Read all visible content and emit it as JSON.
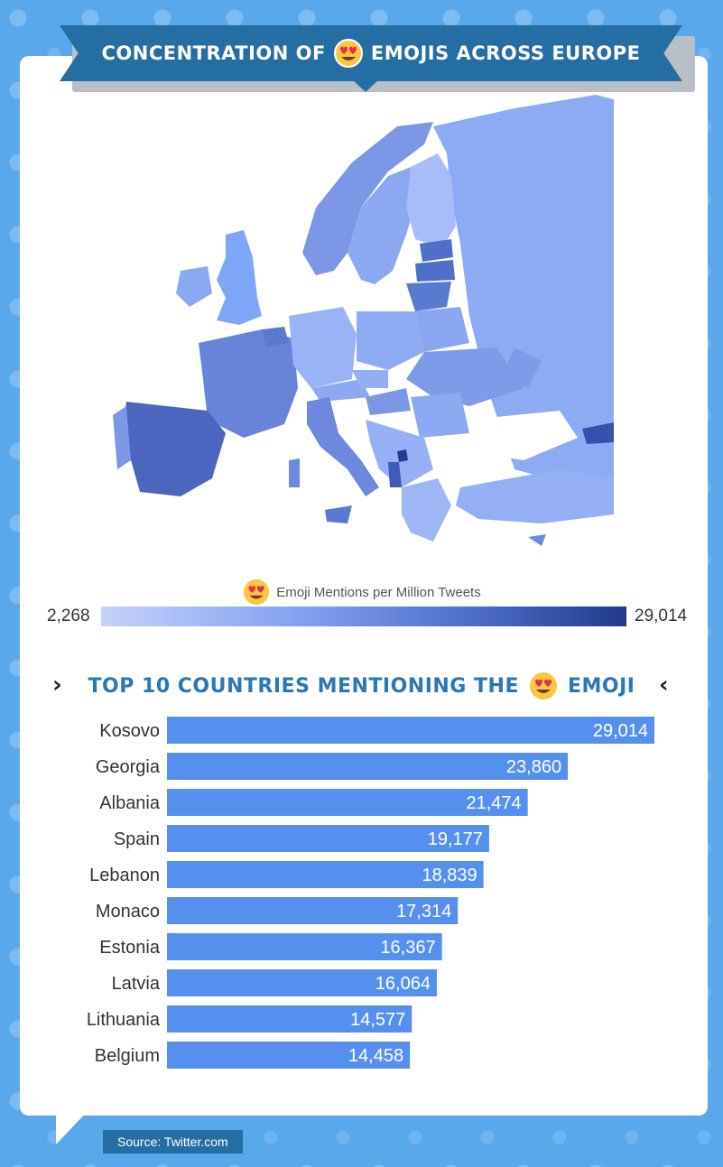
{
  "header": {
    "title_left": "CONCENTRATION OF",
    "title_right": "EMOJIS ACROSS EUROPE"
  },
  "emoji": {
    "icon": "heart-eyes-emoji-icon",
    "face_color": "#f9c740",
    "heart_color": "#e2304a"
  },
  "legend": {
    "label": "Emoji Mentions per Million Tweets",
    "min": "2,268",
    "max": "29,014",
    "color_low": "#c5d2fb",
    "color_high": "#213a8c"
  },
  "section": {
    "title_left": "TOP 10 COUNTRIES MENTIONING THE",
    "title_right": "EMOJI",
    "chevron_left": "›",
    "chevron_right": "‹"
  },
  "chart_data": {
    "type": "bar",
    "orientation": "horizontal",
    "title": "TOP 10 COUNTRIES MENTIONING THE EMOJI",
    "categories": [
      "Kosovo",
      "Georgia",
      "Albania",
      "Spain",
      "Lebanon",
      "Monaco",
      "Estonia",
      "Latvia",
      "Lithuania",
      "Belgium"
    ],
    "values": [
      29014,
      23860,
      21474,
      19177,
      18839,
      17314,
      16367,
      16064,
      14577,
      14458
    ],
    "value_labels": [
      "29,014",
      "23,860",
      "21,474",
      "19,177",
      "18,839",
      "17,314",
      "16,367",
      "16,064",
      "14,577",
      "14,458"
    ],
    "xlim": [
      0,
      29014
    ],
    "bar_color": "#5690ee",
    "grid": false
  },
  "source": "Source: Twitter.com"
}
